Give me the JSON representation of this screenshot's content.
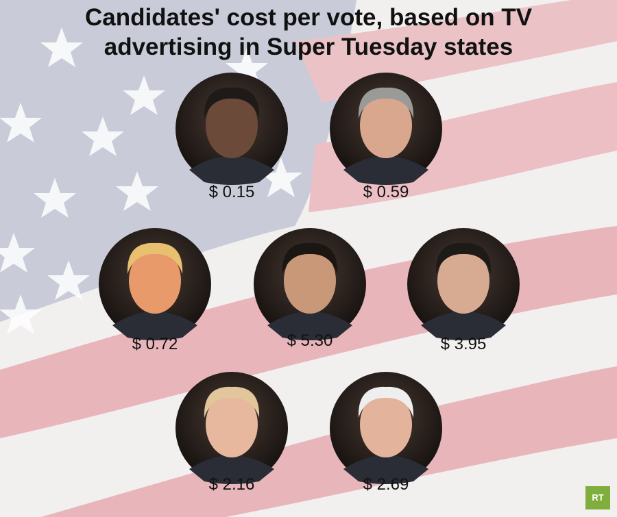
{
  "title": "Candidates' cost per vote, based on TV advertising in Super Tuesday states",
  "candidates": [
    {
      "cost": "$ 0.15"
    },
    {
      "cost": "$ 0.59"
    },
    {
      "cost": "$ 0.72"
    },
    {
      "cost": "$ 5.30"
    },
    {
      "cost": "$ 3.95"
    },
    {
      "cost": "$ 2.16"
    },
    {
      "cost": "$ 2.69"
    }
  ],
  "logo": "RT"
}
